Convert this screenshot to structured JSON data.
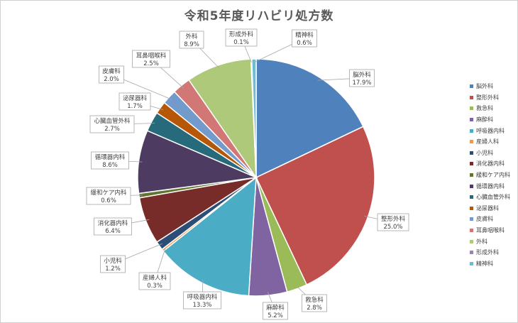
{
  "chart_data": {
    "type": "pie",
    "title": "令和5年度リハビリ処方数",
    "legend_position": "right",
    "slices": [
      {
        "name": "脳外科",
        "label": "17.9%",
        "value": 17.9,
        "color": "#4f81bd"
      },
      {
        "name": "整形外科",
        "label": "25.0%",
        "value": 25.0,
        "color": "#c0504d"
      },
      {
        "name": "救急科",
        "label": "2.8%",
        "value": 2.8,
        "color": "#9bbb59"
      },
      {
        "name": "麻酔科",
        "label": "5.2%",
        "value": 5.2,
        "color": "#8064a2"
      },
      {
        "name": "呼吸器内科",
        "label": "13.3%",
        "value": 13.3,
        "color": "#4bacc6"
      },
      {
        "name": "産婦人科",
        "label": "0.3%",
        "value": 0.3,
        "color": "#f79646"
      },
      {
        "name": "小児科",
        "label": "1.2%",
        "value": 1.2,
        "color": "#2c4d75"
      },
      {
        "name": "消化器内科",
        "label": "6.4%",
        "value": 6.4,
        "color": "#772c2a"
      },
      {
        "name": "緩和ケア内科",
        "label": "0.6%",
        "value": 0.6,
        "color": "#5f7530"
      },
      {
        "name": "循環器内科",
        "label": "8.6%",
        "value": 8.6,
        "color": "#4d3b62"
      },
      {
        "name": "心臓血管外科",
        "label": "2.7%",
        "value": 2.7,
        "color": "#276a7c"
      },
      {
        "name": "泌尿器科",
        "label": "1.7%",
        "value": 1.7,
        "color": "#b65708"
      },
      {
        "name": "皮膚科",
        "label": "2.0%",
        "value": 2.0,
        "color": "#729aca"
      },
      {
        "name": "耳鼻咽喉科",
        "label": "2.5%",
        "value": 2.5,
        "color": "#d17775"
      },
      {
        "name": "外科",
        "label": "8.9%",
        "value": 8.9,
        "color": "#afc97a"
      },
      {
        "name": "形成外科",
        "label": "0.1%",
        "value": 0.1,
        "color": "#9983b5"
      },
      {
        "name": "精神科",
        "label": "0.6%",
        "value": 0.6,
        "color": "#6fbdd1"
      }
    ]
  }
}
